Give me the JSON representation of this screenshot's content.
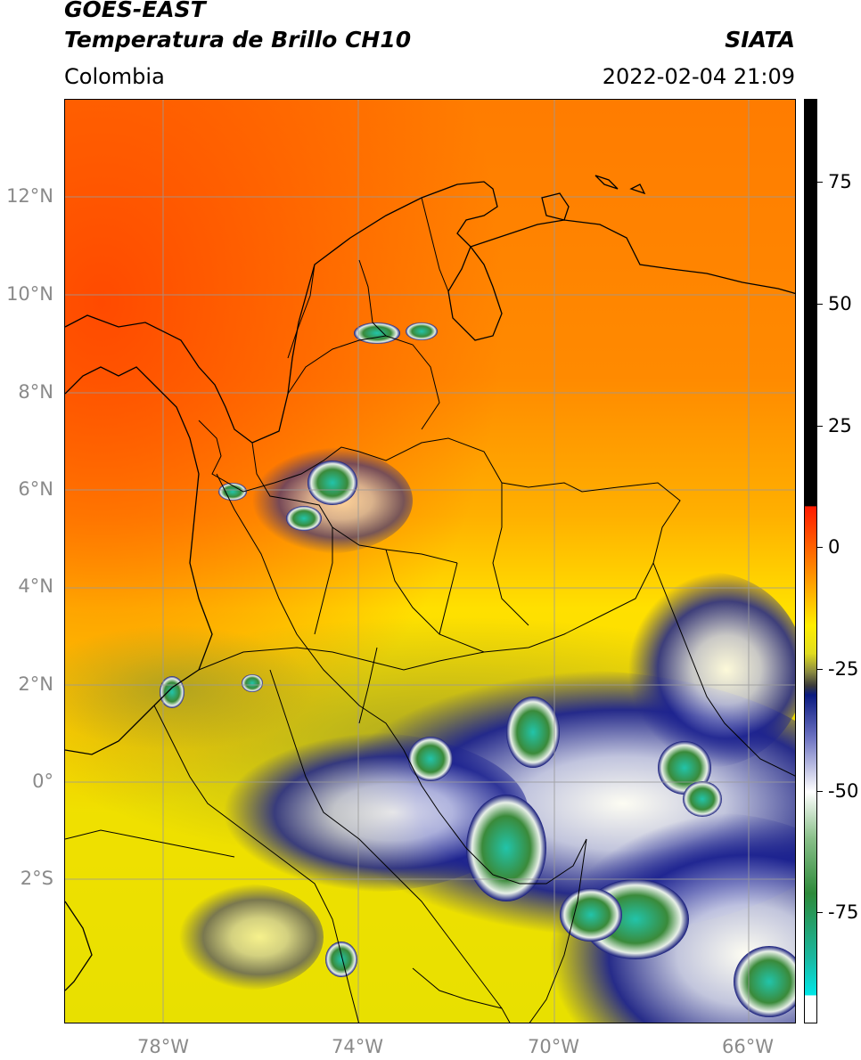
{
  "header": {
    "satellite": "GOES-EAST",
    "product": "Temperatura de Brillo CH10",
    "organization": "SIATA",
    "region": "Colombia",
    "datetime": "2022-02-04 21:09"
  },
  "map": {
    "latitude_labels": [
      "12°N",
      "10°N",
      "8°N",
      "6°N",
      "4°N",
      "2°N",
      "0°",
      "2°S"
    ],
    "longitude_labels": [
      "78°W",
      "74°W",
      "70°W",
      "66°W"
    ],
    "colors": {
      "warm_orange": "#ff6a00",
      "orange": "#ff9a00",
      "yellow": "#ffe600",
      "olive": "#b8b21e",
      "navy": "#14197a",
      "white": "#ffffff",
      "green": "#3a8a3a",
      "teal": "#22c8b0",
      "grid": "#9a9a9a",
      "borders": "#000000"
    }
  },
  "colorbar": {
    "tick_labels": [
      "75",
      "50",
      "25",
      "0",
      "-25",
      "-50",
      "-75"
    ],
    "colors": {
      "black": "#000000",
      "red": "#ff1a00",
      "orange": "#ff9a00",
      "yellow": "#ffee00",
      "olive": "#8a8a40",
      "navy": "#0a1a80",
      "white": "#ffffff",
      "green": "#2d8a3a",
      "cyan": "#00e6e6"
    }
  }
}
